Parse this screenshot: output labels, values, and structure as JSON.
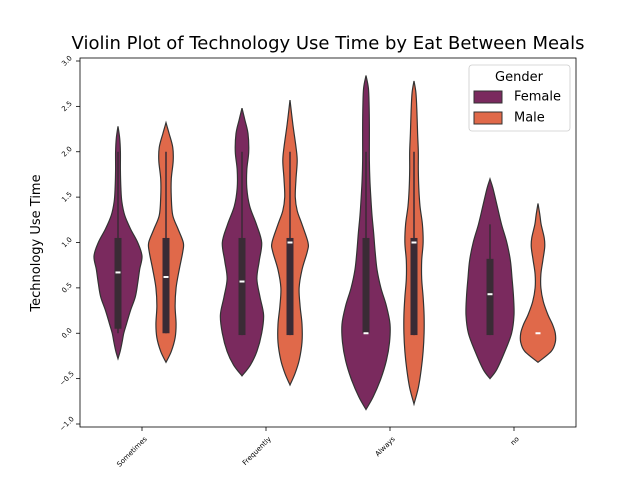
{
  "chart_data": {
    "type": "violin",
    "title": "Violin Plot of Technology Use Time by Eat Between Meals",
    "xlabel": "",
    "ylabel": "Technology Use Time",
    "ylim": [
      -1.0,
      3.0
    ],
    "yticks": [
      "−1.0",
      "−0.5",
      "0.0",
      "0.5",
      "1.0",
      "1.5",
      "2.0",
      "2.5",
      "3.0"
    ],
    "categories": [
      "Sometimes",
      "Frequently",
      "Always",
      "no"
    ],
    "grid": false,
    "legend": {
      "title": "Gender",
      "placement": "top-right"
    },
    "series": [
      {
        "name": "Female",
        "color": "#7a2a5e",
        "violins": [
          {
            "category": "Sometimes",
            "min": -0.28,
            "max": 2.28,
            "q1": 0.05,
            "median": 0.67,
            "q3": 1.05,
            "whisker_low": 0.0,
            "whisker_high": 2.0,
            "profile": [
              [
                -0.28,
                0
              ],
              [
                -0.2,
                0.09
              ],
              [
                -0.1,
                0.17
              ],
              [
                0.0,
                0.24
              ],
              [
                0.1,
                0.35
              ],
              [
                0.25,
                0.52
              ],
              [
                0.4,
                0.72
              ],
              [
                0.55,
                0.82
              ],
              [
                0.7,
                0.9
              ],
              [
                0.85,
                1.0
              ],
              [
                1.0,
                0.82
              ],
              [
                1.15,
                0.52
              ],
              [
                1.3,
                0.28
              ],
              [
                1.45,
                0.16
              ],
              [
                1.6,
                0.12
              ],
              [
                1.8,
                0.1
              ],
              [
                2.0,
                0.1
              ],
              [
                2.15,
                0.07
              ],
              [
                2.28,
                0
              ]
            ]
          },
          {
            "category": "Frequently",
            "min": -0.47,
            "max": 2.48,
            "q1": -0.02,
            "median": 0.57,
            "q3": 1.05,
            "whisker_low": -0.02,
            "whisker_high": 2.0,
            "profile": [
              [
                -0.47,
                0
              ],
              [
                -0.35,
                0.35
              ],
              [
                -0.2,
                0.62
              ],
              [
                0.0,
                0.82
              ],
              [
                0.2,
                0.9
              ],
              [
                0.4,
                0.75
              ],
              [
                0.6,
                0.62
              ],
              [
                0.8,
                0.72
              ],
              [
                1.0,
                0.82
              ],
              [
                1.2,
                0.6
              ],
              [
                1.4,
                0.32
              ],
              [
                1.6,
                0.2
              ],
              [
                1.8,
                0.2
              ],
              [
                2.0,
                0.28
              ],
              [
                2.2,
                0.25
              ],
              [
                2.35,
                0.12
              ],
              [
                2.48,
                0
              ]
            ]
          },
          {
            "category": "Always",
            "min": -0.84,
            "max": 2.84,
            "q1": 0.0,
            "median": 0.0,
            "q3": 1.05,
            "whisker_low": 0.0,
            "whisker_high": 2.0,
            "profile": [
              [
                -0.84,
                0
              ],
              [
                -0.7,
                0.3
              ],
              [
                -0.5,
                0.62
              ],
              [
                -0.3,
                0.85
              ],
              [
                -0.1,
                0.98
              ],
              [
                0.1,
                1.0
              ],
              [
                0.3,
                0.85
              ],
              [
                0.5,
                0.62
              ],
              [
                0.7,
                0.46
              ],
              [
                0.9,
                0.38
              ],
              [
                1.1,
                0.32
              ],
              [
                1.3,
                0.25
              ],
              [
                1.5,
                0.2
              ],
              [
                1.7,
                0.16
              ],
              [
                1.9,
                0.14
              ],
              [
                2.1,
                0.14
              ],
              [
                2.3,
                0.14
              ],
              [
                2.5,
                0.13
              ],
              [
                2.7,
                0.1
              ],
              [
                2.84,
                0
              ]
            ]
          },
          {
            "category": "no",
            "min": -0.5,
            "max": 1.7,
            "q1": -0.02,
            "median": 0.43,
            "q3": 0.82,
            "whisker_low": -0.02,
            "whisker_high": 1.2,
            "profile": [
              [
                -0.5,
                0
              ],
              [
                -0.4,
                0.28
              ],
              [
                -0.2,
                0.62
              ],
              [
                0.0,
                0.9
              ],
              [
                0.2,
                1.0
              ],
              [
                0.4,
                0.98
              ],
              [
                0.6,
                0.92
              ],
              [
                0.8,
                0.85
              ],
              [
                1.0,
                0.7
              ],
              [
                1.2,
                0.48
              ],
              [
                1.4,
                0.3
              ],
              [
                1.6,
                0.12
              ],
              [
                1.7,
                0
              ]
            ]
          }
        ]
      },
      {
        "name": "Male",
        "color": "#e0694a",
        "violins": [
          {
            "category": "Sometimes",
            "min": -0.32,
            "max": 2.32,
            "q1": 0.0,
            "median": 0.62,
            "q3": 1.05,
            "whisker_low": 0.0,
            "whisker_high": 2.0,
            "profile": [
              [
                -0.32,
                0
              ],
              [
                -0.2,
                0.22
              ],
              [
                -0.05,
                0.38
              ],
              [
                0.1,
                0.42
              ],
              [
                0.3,
                0.38
              ],
              [
                0.5,
                0.42
              ],
              [
                0.7,
                0.55
              ],
              [
                0.9,
                0.7
              ],
              [
                1.0,
                0.72
              ],
              [
                1.15,
                0.5
              ],
              [
                1.3,
                0.28
              ],
              [
                1.5,
                0.22
              ],
              [
                1.7,
                0.22
              ],
              [
                1.9,
                0.3
              ],
              [
                2.05,
                0.28
              ],
              [
                2.2,
                0.13
              ],
              [
                2.32,
                0
              ]
            ]
          },
          {
            "category": "Frequently",
            "min": -0.57,
            "max": 2.57,
            "q1": -0.02,
            "median": 1.0,
            "q3": 1.05,
            "whisker_low": -0.02,
            "whisker_high": 2.0,
            "profile": [
              [
                -0.57,
                0
              ],
              [
                -0.45,
                0.2
              ],
              [
                -0.3,
                0.38
              ],
              [
                -0.1,
                0.5
              ],
              [
                0.1,
                0.5
              ],
              [
                0.3,
                0.42
              ],
              [
                0.5,
                0.38
              ],
              [
                0.7,
                0.5
              ],
              [
                0.9,
                0.72
              ],
              [
                1.0,
                0.75
              ],
              [
                1.2,
                0.5
              ],
              [
                1.35,
                0.3
              ],
              [
                1.5,
                0.22
              ],
              [
                1.7,
                0.25
              ],
              [
                1.9,
                0.3
              ],
              [
                2.05,
                0.25
              ],
              [
                2.3,
                0.12
              ],
              [
                2.57,
                0
              ]
            ]
          },
          {
            "category": "Always",
            "min": -0.78,
            "max": 2.78,
            "q1": -0.02,
            "median": 1.0,
            "q3": 1.05,
            "whisker_low": -0.02,
            "whisker_high": 2.0,
            "profile": [
              [
                -0.78,
                0
              ],
              [
                -0.6,
                0.18
              ],
              [
                -0.4,
                0.3
              ],
              [
                -0.2,
                0.38
              ],
              [
                0.0,
                0.42
              ],
              [
                0.2,
                0.42
              ],
              [
                0.4,
                0.38
              ],
              [
                0.6,
                0.32
              ],
              [
                0.8,
                0.32
              ],
              [
                1.0,
                0.38
              ],
              [
                1.2,
                0.35
              ],
              [
                1.4,
                0.25
              ],
              [
                1.6,
                0.2
              ],
              [
                1.8,
                0.18
              ],
              [
                2.0,
                0.18
              ],
              [
                2.2,
                0.15
              ],
              [
                2.45,
                0.12
              ],
              [
                2.65,
                0.08
              ],
              [
                2.78,
                0
              ]
            ]
          },
          {
            "category": "no",
            "min": -0.32,
            "max": 1.43,
            "q1": 0.0,
            "median": 0.0,
            "q3": 0.0,
            "whisker_low": 0.0,
            "whisker_high": 0.0,
            "profile": [
              [
                -0.32,
                0
              ],
              [
                -0.2,
                0.55
              ],
              [
                -0.1,
                0.72
              ],
              [
                0.0,
                0.72
              ],
              [
                0.1,
                0.6
              ],
              [
                0.2,
                0.42
              ],
              [
                0.35,
                0.22
              ],
              [
                0.5,
                0.12
              ],
              [
                0.65,
                0.12
              ],
              [
                0.8,
                0.2
              ],
              [
                0.95,
                0.28
              ],
              [
                1.05,
                0.26
              ],
              [
                1.2,
                0.13
              ],
              [
                1.3,
                0.08
              ],
              [
                1.43,
                0
              ]
            ]
          }
        ]
      }
    ]
  }
}
